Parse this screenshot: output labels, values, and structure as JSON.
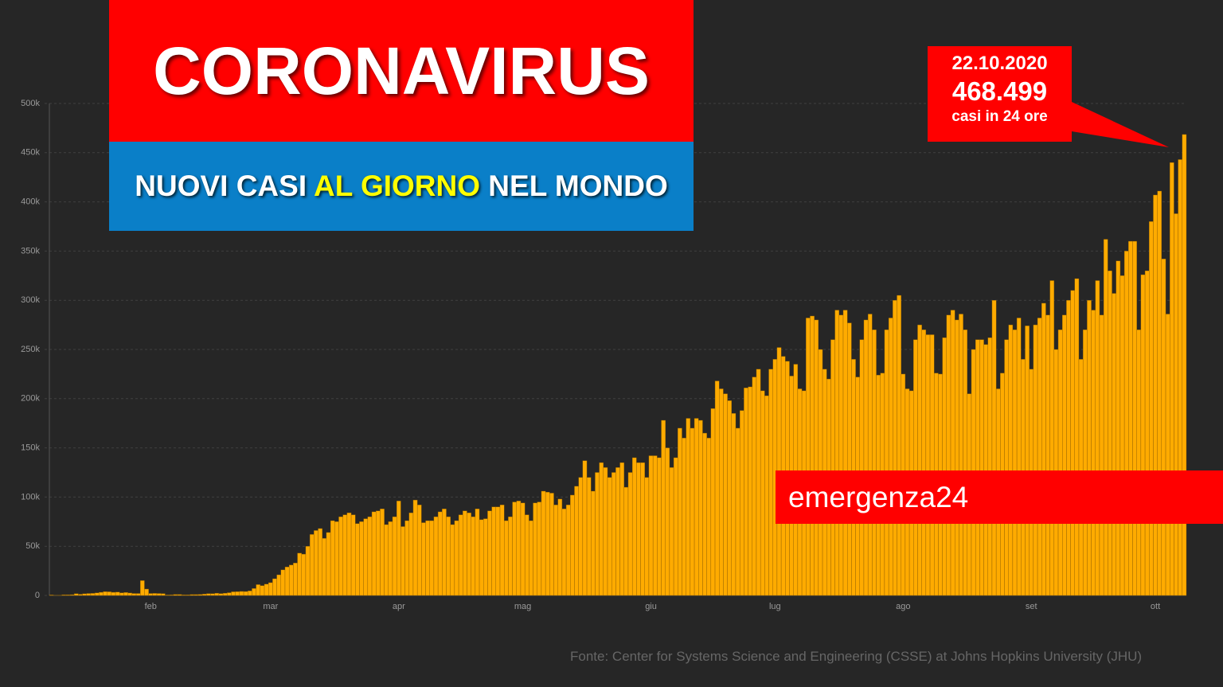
{
  "title": "CORONAVIRUS",
  "subtitle": {
    "part1": "NUOVI CASI ",
    "highlight": "AL GIORNO",
    "part2": " NEL MONDO"
  },
  "annotation": {
    "date": "22.10.2020",
    "value": "468.499",
    "note": "casi in 24 ore"
  },
  "brand": "emergenza24",
  "source": "Fonte: Center for Systems Science and Engineering (CSSE) at Johns Hopkins University (JHU)",
  "chart_data": {
    "type": "bar",
    "color": "#ffab00",
    "grid": true,
    "ylim": [
      0,
      500000
    ],
    "yticks": [
      0,
      {
        "value": 50000,
        "label": "50k"
      },
      {
        "value": 100000,
        "label": "100k"
      },
      {
        "value": 150000,
        "label": "150k"
      },
      {
        "value": 200000,
        "label": "200k"
      },
      {
        "value": 250000,
        "label": "250k"
      },
      {
        "value": 300000,
        "label": "300k"
      },
      {
        "value": 350000,
        "label": "350k"
      },
      {
        "value": 400000,
        "label": "400k"
      },
      {
        "value": 450000,
        "label": "450k"
      },
      {
        "value": 500000,
        "label": "500k"
      }
    ],
    "categories": [
      null,
      null,
      null,
      null,
      null,
      null,
      null,
      null,
      null,
      null,
      null,
      null,
      null,
      null,
      null,
      null,
      null,
      null,
      null,
      null,
      null,
      null,
      null,
      null,
      "feb",
      null,
      null,
      null,
      null,
      null,
      null,
      null,
      null,
      null,
      null,
      null,
      null,
      null,
      null,
      null,
      null,
      null,
      null,
      null,
      null,
      null,
      null,
      null,
      null,
      null,
      null,
      null,
      null,
      "mar",
      null,
      null,
      null,
      null,
      null,
      null,
      null,
      null,
      null,
      null,
      null,
      null,
      null,
      null,
      null,
      null,
      null,
      null,
      null,
      null,
      null,
      null,
      null,
      null,
      null,
      null,
      null,
      null,
      null,
      null,
      "apr",
      null,
      null,
      null,
      null,
      null,
      null,
      null,
      null,
      null,
      null,
      null,
      null,
      null,
      null,
      null,
      null,
      null,
      null,
      null,
      null,
      null,
      null,
      null,
      null,
      null,
      null,
      null,
      null,
      null,
      "mag",
      null,
      null,
      null,
      null,
      null,
      null,
      null,
      null,
      null,
      null,
      null,
      null,
      null,
      null,
      null,
      null,
      null,
      null,
      null,
      null,
      null,
      null,
      null,
      null,
      null,
      null,
      null,
      null,
      null,
      null,
      "giu",
      null,
      null,
      null,
      null,
      null,
      null,
      null,
      null,
      null,
      null,
      null,
      null,
      null,
      null,
      null,
      null,
      null,
      null,
      null,
      null,
      null,
      null,
      null,
      null,
      null,
      null,
      null,
      null,
      null,
      "lug",
      null,
      null,
      null,
      null,
      null,
      null,
      null,
      null,
      null,
      null,
      null,
      null,
      null,
      null,
      null,
      null,
      null,
      null,
      null,
      null,
      null,
      null,
      null,
      null,
      null,
      null,
      null,
      null,
      null,
      null,
      "ago",
      null,
      null,
      null,
      null,
      null,
      null,
      null,
      null,
      null,
      null,
      null,
      null,
      null,
      null,
      null,
      null,
      null,
      null,
      null,
      null,
      null,
      null,
      null,
      null,
      null,
      null,
      null,
      null,
      null,
      null,
      "set",
      null,
      null,
      null,
      null,
      null,
      null,
      null,
      null,
      null,
      null,
      null,
      null,
      null,
      null,
      null,
      null,
      null,
      null,
      null,
      null,
      null,
      null,
      null,
      null,
      null,
      null,
      null,
      null,
      null,
      "ott",
      null,
      null,
      null,
      null,
      null,
      null,
      null
    ],
    "values": [
      500,
      100,
      300,
      700,
      700,
      800,
      1800,
      1200,
      1700,
      2000,
      2100,
      2600,
      3200,
      3900,
      3700,
      3200,
      3400,
      2700,
      3000,
      2500,
      2000,
      2000,
      15100,
      6500,
      2000,
      2100,
      2000,
      1900,
      500,
      600,
      1000,
      1000,
      600,
      600,
      900,
      900,
      1100,
      1400,
      1900,
      1800,
      2300,
      1900,
      2300,
      2800,
      3700,
      3900,
      4100,
      4000,
      4600,
      7100,
      11000,
      10000,
      11500,
      13000,
      17000,
      21000,
      26000,
      29000,
      31000,
      33000,
      43000,
      42000,
      50000,
      62000,
      66000,
      68000,
      58000,
      64000,
      76000,
      75000,
      80000,
      82000,
      84000,
      82000,
      73000,
      75000,
      78000,
      80000,
      85000,
      86000,
      88000,
      72000,
      75000,
      80000,
      96000,
      70000,
      76000,
      84000,
      97000,
      92000,
      74000,
      76000,
      76000,
      80000,
      85000,
      88000,
      80000,
      72000,
      76000,
      82000,
      86000,
      84000,
      80000,
      88000,
      77000,
      78000,
      86000,
      90000,
      90000,
      92000,
      76000,
      80000,
      95000,
      96000,
      94000,
      82000,
      76000,
      94000,
      95000,
      106000,
      105000,
      104000,
      92000,
      98000,
      88000,
      92000,
      102000,
      111000,
      120000,
      137000,
      120000,
      106000,
      125000,
      135000,
      130000,
      120000,
      125000,
      130000,
      135000,
      110000,
      125000,
      140000,
      135000,
      135000,
      120000,
      142000,
      142000,
      140000,
      178000,
      150000,
      130000,
      140000,
      170000,
      160000,
      180000,
      170000,
      180000,
      178000,
      165000,
      160000,
      190000,
      218000,
      210000,
      205000,
      198000,
      185000,
      170000,
      188000,
      211000,
      212000,
      222000,
      230000,
      208000,
      203000,
      230000,
      240000,
      252000,
      243000,
      238000,
      223000,
      235000,
      210000,
      208000,
      282000,
      284000,
      280000,
      250000,
      230000,
      220000,
      260000,
      290000,
      285000,
      290000,
      277000,
      240000,
      222000,
      260000,
      280000,
      286000,
      270000,
      224000,
      226000,
      270000,
      282000,
      300000,
      305000,
      225000,
      210000,
      208000,
      260000,
      275000,
      270000,
      265000,
      265000,
      226000,
      225000,
      262000,
      285000,
      290000,
      280000,
      286000,
      270000,
      205000,
      250000,
      260000,
      260000,
      255000,
      262000,
      300000,
      210000,
      226000,
      260000,
      275000,
      270000,
      282000,
      240000,
      274000,
      230000,
      275000,
      282000,
      297000,
      285000,
      320000,
      250000,
      270000,
      285000,
      300000,
      310000,
      322000,
      240000,
      270000,
      300000,
      290000,
      320000,
      285000,
      362000,
      330000,
      307000,
      340000,
      325000,
      350000,
      360000,
      360000,
      270000,
      326000,
      330000,
      380000,
      407000,
      411000,
      342000,
      286000,
      440000,
      388000,
      443000,
      468499
    ]
  }
}
